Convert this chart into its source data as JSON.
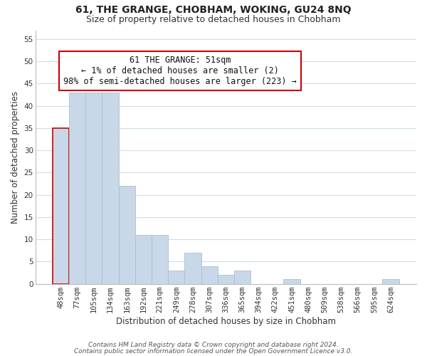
{
  "title": "61, THE GRANGE, CHOBHAM, WOKING, GU24 8NQ",
  "subtitle": "Size of property relative to detached houses in Chobham",
  "xlabel": "Distribution of detached houses by size in Chobham",
  "ylabel": "Number of detached properties",
  "bar_labels": [
    "48sqm",
    "77sqm",
    "105sqm",
    "134sqm",
    "163sqm",
    "192sqm",
    "221sqm",
    "249sqm",
    "278sqm",
    "307sqm",
    "336sqm",
    "365sqm",
    "394sqm",
    "422sqm",
    "451sqm",
    "480sqm",
    "509sqm",
    "538sqm",
    "566sqm",
    "595sqm",
    "624sqm"
  ],
  "bar_values": [
    35,
    43,
    43,
    43,
    22,
    11,
    11,
    3,
    7,
    4,
    2,
    3,
    0,
    0,
    1,
    0,
    0,
    0,
    0,
    0,
    1
  ],
  "bar_color": "#c8d8e8",
  "bar_edgecolor": "#a8bfd0",
  "highlight_index": 0,
  "highlight_edgecolor": "#cc0000",
  "annotation_text": "61 THE GRANGE: 51sqm\n← 1% of detached houses are smaller (2)\n98% of semi-detached houses are larger (223) →",
  "annotation_box_edgecolor": "#cc0000",
  "annotation_box_facecolor": "#ffffff",
  "ylim": [
    0,
    57
  ],
  "yticks": [
    0,
    5,
    10,
    15,
    20,
    25,
    30,
    35,
    40,
    45,
    50,
    55
  ],
  "footer_line1": "Contains HM Land Registry data © Crown copyright and database right 2024.",
  "footer_line2": "Contains public sector information licensed under the Open Government Licence v3.0.",
  "background_color": "#ffffff",
  "grid_color": "#ccdde8",
  "title_fontsize": 10,
  "subtitle_fontsize": 9,
  "axis_label_fontsize": 8.5,
  "tick_fontsize": 7.5,
  "annotation_fontsize": 8.5,
  "footer_fontsize": 6.5
}
